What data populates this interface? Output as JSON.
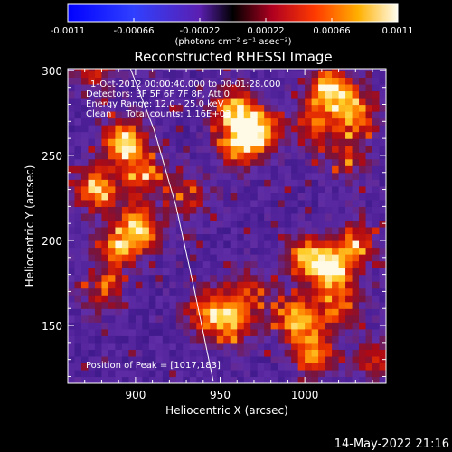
{
  "chart_data": {
    "type": "heatmap",
    "title": "Reconstructed RHESSI Image",
    "xlabel": "Heliocentric X (arcsec)",
    "ylabel": "Heliocentric Y (arcsec)",
    "xlim": [
      860,
      1048
    ],
    "ylim": [
      116,
      301
    ],
    "xticks": [
      900,
      950,
      1000
    ],
    "yticks": [
      150,
      200,
      250,
      300
    ],
    "colormap": "rhessi-hot",
    "colorbar": {
      "ticks": [
        "-0.0011",
        "-0.00066",
        "-0.00022",
        "0.00022",
        "0.00066",
        "0.0011"
      ],
      "unit_label": "(photons cm⁻² s⁻¹ asec⁻²)",
      "min": -0.0011,
      "max": 0.0011
    },
    "annotations": [
      "1-Oct-2012 00:00:40.000 to 00:01:28.000",
      "Detectors: 3F 5F 6F 7F 8F, Att 0",
      "Energy Range: 12.0 - 25.0 keV",
      "Clean     Total counts: 1.16E+03"
    ],
    "peak_label": "Position of Peak = [1017,183]",
    "peak": [
      1017,
      183
    ],
    "limb": [
      [
        946,
        117
      ],
      [
        935,
        170
      ],
      [
        924,
        220
      ],
      [
        911,
        265
      ],
      [
        897,
        301
      ]
    ],
    "hotspots": [
      [
        893,
        258,
        1.0
      ],
      [
        877,
        230,
        0.85
      ],
      [
        905,
        238,
        0.6
      ],
      [
        902,
        208,
        0.85
      ],
      [
        890,
        195,
        0.7
      ],
      [
        932,
        225,
        0.45
      ],
      [
        944,
        158,
        0.75
      ],
      [
        957,
        150,
        0.6
      ],
      [
        965,
        170,
        0.55
      ],
      [
        972,
        265,
        0.95
      ],
      [
        958,
        278,
        0.8
      ],
      [
        960,
        255,
        0.7
      ],
      [
        1015,
        290,
        0.9
      ],
      [
        1030,
        275,
        0.8
      ],
      [
        1005,
        270,
        0.6
      ],
      [
        1025,
        250,
        0.5
      ],
      [
        1017,
        183,
        1.0
      ],
      [
        1000,
        190,
        0.8
      ],
      [
        1030,
        200,
        0.6
      ],
      [
        995,
        155,
        0.85
      ],
      [
        1005,
        135,
        0.8
      ],
      [
        1020,
        160,
        0.6
      ],
      [
        875,
        300,
        0.5
      ],
      [
        1042,
        130,
        0.5
      ],
      [
        880,
        170,
        0.45
      ]
    ]
  },
  "timestamp": "14-May-2022 21:16"
}
